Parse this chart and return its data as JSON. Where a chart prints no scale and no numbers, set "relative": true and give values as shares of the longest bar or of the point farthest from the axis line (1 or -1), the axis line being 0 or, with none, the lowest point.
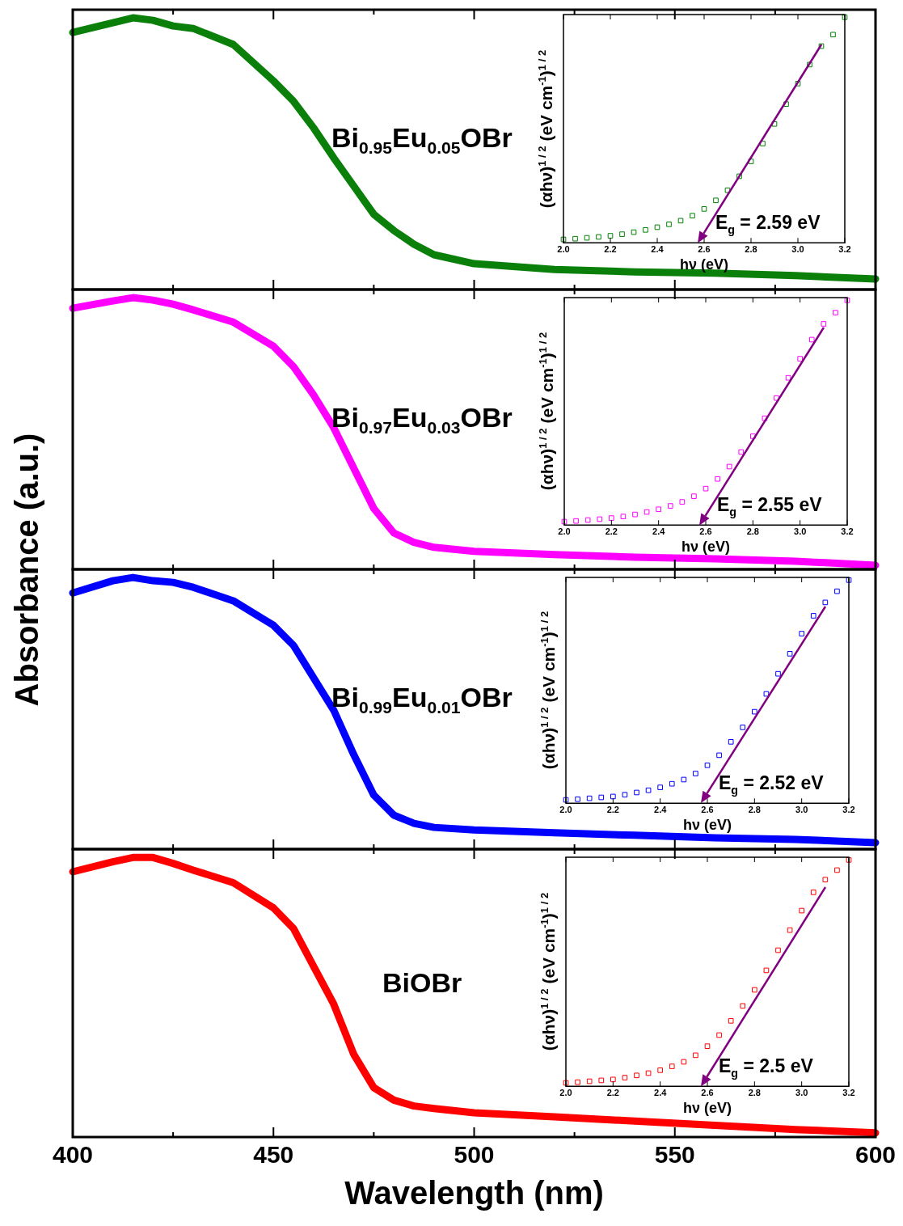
{
  "chart_data": [
    {
      "type": "line",
      "relative": true,
      "x": [
        400,
        410,
        415,
        420,
        425,
        430,
        440,
        450,
        455,
        460,
        465,
        470,
        475,
        480,
        485,
        490,
        500,
        520,
        540,
        560,
        580,
        600
      ],
      "xlim": [
        400,
        600
      ],
      "xticks": [
        400,
        {
          "value": 425,
          "label": null
        },
        450,
        {
          "value": 475,
          "label": null
        },
        500,
        {
          "value": 525,
          "label": null
        },
        550,
        {
          "value": 575,
          "label": null
        },
        600
      ],
      "tick_labels": false,
      "line_style": "solid",
      "series": [
        {
          "name": "Bi$_{0.95}$Eu$_{0.05}$OBr",
          "color": "#0a800a",
          "values": [
            0.946,
            0.982,
            1,
            0.991,
            0.97,
            0.961,
            0.902,
            0.768,
            0.693,
            0.595,
            0.485,
            0.381,
            0.277,
            0.217,
            0.167,
            0.128,
            0.095,
            0.074,
            0.065,
            0.06,
            0.051,
            0.039
          ]
        }
      ]
    },
    {
      "type": "scatter",
      "relative": true,
      "x": [
        2.0,
        2.05,
        2.1,
        2.15,
        2.2,
        2.25,
        2.3,
        2.35,
        2.4,
        2.45,
        2.5,
        2.55,
        2.6,
        2.65,
        2.7,
        2.75,
        2.8,
        2.85,
        2.9,
        2.95,
        3.0,
        3.05,
        3.1,
        3.15,
        3.2
      ],
      "xlim": [
        2.0,
        3.2
      ],
      "xticks": [
        {
          "value": 2.0,
          "label": "2.0"
        },
        2.2,
        2.4,
        2.6,
        2.8,
        {
          "value": 3.0,
          "label": "3.0"
        },
        3.2
      ],
      "tick_labels": "x",
      "xlabel": "hν (eV)",
      "ylabel": "(αhν)$^{1 / 2}$ (eV cm$^{-1}$)$^{1 / 2}$",
      "marker": "square",
      "series": [
        {
          "color": "#008000",
          "values": [
            0.015,
            0.018,
            0.022,
            0.026,
            0.031,
            0.038,
            0.047,
            0.057,
            0.069,
            0.082,
            0.098,
            0.12,
            0.15,
            0.188,
            0.233,
            0.295,
            0.361,
            0.44,
            0.527,
            0.615,
            0.706,
            0.79,
            0.872,
            0.923,
            1
          ]
        }
      ],
      "annotations": [
        "E$_{g}$ = 2.59 eV"
      ]
    },
    {
      "type": "line",
      "relative": true,
      "x": [
        400,
        410,
        415,
        420,
        425,
        430,
        440,
        450,
        455,
        460,
        465,
        470,
        475,
        480,
        485,
        490,
        500,
        520,
        540,
        560,
        580,
        600
      ],
      "xlim": [
        400,
        600
      ],
      "xticks": [
        400,
        {
          "value": 425,
          "label": null
        },
        450,
        {
          "value": 475,
          "label": null
        },
        500,
        {
          "value": 525,
          "label": null
        },
        550,
        {
          "value": 575,
          "label": null
        },
        600
      ],
      "tick_labels": false,
      "line_style": "solid",
      "series": [
        {
          "name": "Bi$_{0.97}$Eu$_{0.03}$OBr",
          "color": "#ff00ff",
          "values": [
            0.961,
            0.988,
            1,
            0.991,
            0.976,
            0.955,
            0.91,
            0.821,
            0.746,
            0.642,
            0.522,
            0.373,
            0.224,
            0.134,
            0.099,
            0.081,
            0.066,
            0.054,
            0.045,
            0.039,
            0.03,
            0.015
          ]
        }
      ]
    },
    {
      "type": "scatter",
      "relative": true,
      "x": [
        2.0,
        2.05,
        2.1,
        2.15,
        2.2,
        2.25,
        2.3,
        2.35,
        2.4,
        2.45,
        2.5,
        2.55,
        2.6,
        2.65,
        2.7,
        2.75,
        2.8,
        2.85,
        2.9,
        2.95,
        3.0,
        3.05,
        3.1,
        3.15,
        3.2
      ],
      "xlim": [
        2.0,
        3.2
      ],
      "xticks": [
        {
          "value": 2.0,
          "label": "2.0"
        },
        2.2,
        2.4,
        2.6,
        2.8,
        {
          "value": 3.0,
          "label": "3.0"
        },
        3.2
      ],
      "tick_labels": "x",
      "xlabel": "hν (eV)",
      "ylabel": "(αhν)$^{1 / 2}$ (eV cm$^{-1}$)$^{1 / 2}$",
      "marker": "square",
      "series": [
        {
          "color": "#ff00ff",
          "values": [
            0.015,
            0.018,
            0.022,
            0.026,
            0.031,
            0.038,
            0.047,
            0.058,
            0.07,
            0.085,
            0.103,
            0.128,
            0.162,
            0.205,
            0.26,
            0.325,
            0.395,
            0.475,
            0.565,
            0.655,
            0.74,
            0.825,
            0.895,
            0.945,
            1
          ]
        }
      ],
      "annotations": [
        "E$_{g}$ = 2.55 eV"
      ]
    },
    {
      "type": "line",
      "relative": true,
      "x": [
        400,
        410,
        415,
        420,
        425,
        430,
        440,
        450,
        455,
        460,
        465,
        470,
        475,
        480,
        485,
        490,
        500,
        520,
        540,
        560,
        580,
        600
      ],
      "xlim": [
        400,
        600
      ],
      "xticks": [
        400,
        {
          "value": 425,
          "label": null
        },
        450,
        {
          "value": 475,
          "label": null
        },
        500,
        {
          "value": 525,
          "label": null
        },
        550,
        {
          "value": 575,
          "label": null
        },
        600
      ],
      "tick_labels": false,
      "line_style": "solid",
      "series": [
        {
          "name": "Bi$_{0.99}$Eu$_{0.01}$OBr",
          "color": "#0000ff",
          "values": [
            0.943,
            0.988,
            1,
            0.988,
            0.982,
            0.964,
            0.914,
            0.824,
            0.75,
            0.631,
            0.512,
            0.348,
            0.199,
            0.125,
            0.095,
            0.08,
            0.071,
            0.06,
            0.051,
            0.042,
            0.036,
            0.024
          ]
        }
      ]
    },
    {
      "type": "scatter",
      "relative": true,
      "x": [
        2.0,
        2.05,
        2.1,
        2.15,
        2.2,
        2.25,
        2.3,
        2.35,
        2.4,
        2.45,
        2.5,
        2.55,
        2.6,
        2.65,
        2.7,
        2.75,
        2.8,
        2.85,
        2.9,
        2.95,
        3.0,
        3.05,
        3.1,
        3.15,
        3.2
      ],
      "xlim": [
        2.0,
        3.2
      ],
      "xticks": [
        {
          "value": 2.0,
          "label": "2.0"
        },
        2.2,
        2.4,
        2.6,
        2.8,
        {
          "value": 3.0,
          "label": "3.0"
        },
        3.2
      ],
      "tick_labels": "x",
      "xlabel": "hν (eV)",
      "ylabel": "(αhν)$^{1 / 2}$ (eV cm$^{-1}$)$^{1 / 2}$",
      "marker": "square",
      "series": [
        {
          "color": "#0000ff",
          "values": [
            0.015,
            0.018,
            0.022,
            0.026,
            0.03,
            0.038,
            0.048,
            0.058,
            0.071,
            0.087,
            0.106,
            0.133,
            0.17,
            0.215,
            0.275,
            0.34,
            0.41,
            0.49,
            0.58,
            0.67,
            0.76,
            0.84,
            0.9,
            0.95,
            1
          ]
        }
      ],
      "annotations": [
        "E$_{g}$ = 2.52 eV"
      ]
    },
    {
      "type": "line",
      "relative": true,
      "x": [
        400,
        410,
        415,
        420,
        425,
        430,
        440,
        450,
        455,
        460,
        465,
        470,
        475,
        480,
        485,
        490,
        500,
        520,
        540,
        560,
        580,
        600
      ],
      "xlim": [
        400,
        600
      ],
      "xticks": [
        400,
        {
          "value": 425,
          "label": null
        },
        450,
        {
          "value": 475,
          "label": null
        },
        500,
        {
          "value": 525,
          "label": null
        },
        550,
        {
          "value": 575,
          "label": null
        },
        600
      ],
      "tick_labels": "x",
      "xlabel": "Wavelength (nm)",
      "ylabel": "Absorbance (a.u.)",
      "line_style": "solid",
      "series": [
        {
          "name": "BiOBr",
          "color": "#ff0000",
          "values": [
            0.949,
            0.985,
            1,
            1,
            0.979,
            0.955,
            0.91,
            0.82,
            0.746,
            0.611,
            0.476,
            0.296,
            0.177,
            0.132,
            0.111,
            0.102,
            0.087,
            0.072,
            0.057,
            0.042,
            0.027,
            0.015
          ]
        }
      ]
    },
    {
      "type": "scatter",
      "relative": true,
      "x": [
        2.0,
        2.05,
        2.1,
        2.15,
        2.2,
        2.25,
        2.3,
        2.35,
        2.4,
        2.45,
        2.5,
        2.55,
        2.6,
        2.65,
        2.7,
        2.75,
        2.8,
        2.85,
        2.9,
        2.95,
        3.0,
        3.05,
        3.1,
        3.15,
        3.2
      ],
      "xlim": [
        2.0,
        3.2
      ],
      "xticks": [
        {
          "value": 2.0,
          "label": "2.0"
        },
        2.2,
        2.4,
        2.6,
        2.8,
        {
          "value": 3.0,
          "label": "3.0"
        },
        3.2
      ],
      "tick_labels": "x",
      "xlabel": "hν (eV)",
      "ylabel": "(αhν)$^{1 / 2}$ (eV cm$^{-1}$)$^{1 / 2}$",
      "marker": "square",
      "series": [
        {
          "color": "#ff0000",
          "values": [
            0.015,
            0.018,
            0.022,
            0.026,
            0.03,
            0.038,
            0.048,
            0.058,
            0.071,
            0.088,
            0.108,
            0.137,
            0.177,
            0.226,
            0.289,
            0.355,
            0.426,
            0.512,
            0.601,
            0.69,
            0.776,
            0.857,
            0.913,
            0.955,
            1
          ]
        }
      ],
      "annotations": [
        "E$_{g}$ = 2.5 eV"
      ]
    }
  ]
}
